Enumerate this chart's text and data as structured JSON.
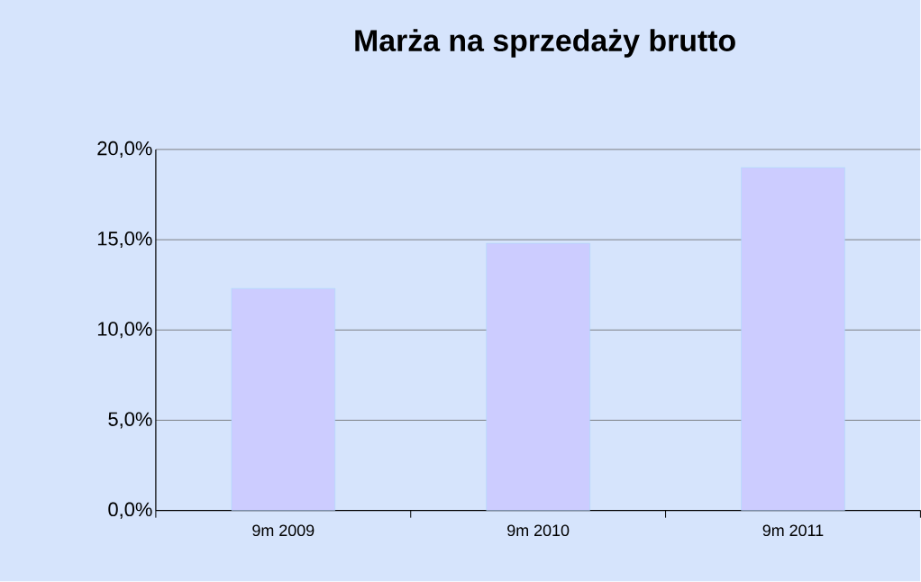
{
  "chart_data": {
    "type": "bar",
    "title": "Marża na sprzedaży brutto",
    "categories": [
      "9m 2009",
      "9m 2010",
      "9m 2011"
    ],
    "values": [
      12.3,
      14.8,
      19.0
    ],
    "color": "#ccccff",
    "ylim": [
      0,
      20
    ],
    "yticks": [
      {
        "value": 0,
        "label": "0,0%"
      },
      {
        "value": 5,
        "label": "5,0%"
      },
      {
        "value": 10,
        "label": "10,0%"
      },
      {
        "value": 15,
        "label": "15,0%"
      },
      {
        "value": 20,
        "label": "20,0%"
      }
    ],
    "grid": "y"
  }
}
